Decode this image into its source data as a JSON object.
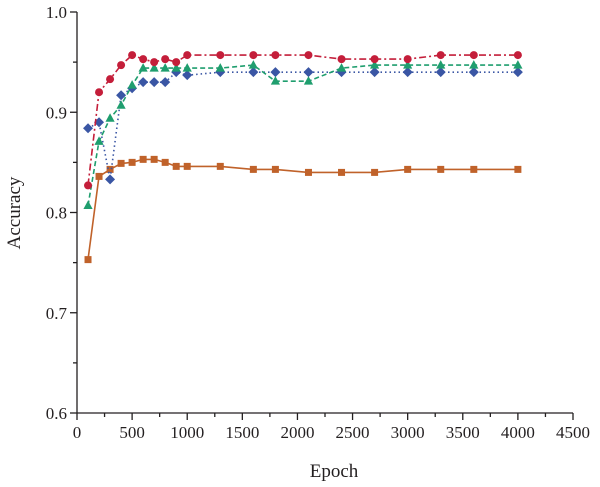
{
  "chart_data": {
    "type": "line",
    "title": "",
    "xlabel": "Epoch",
    "ylabel": "Accuracy",
    "xlim": [
      0,
      4500
    ],
    "ylim": [
      0.6,
      1.0
    ],
    "x_ticks": [
      0,
      500,
      1000,
      1500,
      2000,
      2500,
      3000,
      3500,
      4000,
      4500
    ],
    "x_tick_labels": [
      "0",
      "500",
      "1000",
      "1500",
      "2000",
      "2500",
      "3000",
      "3500",
      "4000",
      "4500"
    ],
    "y_ticks": [
      0.6,
      0.7,
      0.8,
      0.9,
      1.0
    ],
    "y_tick_labels": [
      "0.6",
      "0.7",
      "0.8",
      "0.9",
      "1.0"
    ],
    "grid": false,
    "legend": "none",
    "series": [
      {
        "key": "orange-squares",
        "color": "#c0622a",
        "marker": "square",
        "line_style": "solid",
        "points": [
          [
            100,
            0.753
          ],
          [
            200,
            0.836
          ],
          [
            300,
            0.843
          ],
          [
            400,
            0.849
          ],
          [
            500,
            0.85
          ],
          [
            600,
            0.853
          ],
          [
            700,
            0.853
          ],
          [
            800,
            0.85
          ],
          [
            900,
            0.846
          ],
          [
            1000,
            0.846
          ],
          [
            1300,
            0.846
          ],
          [
            1600,
            0.843
          ],
          [
            1800,
            0.843
          ],
          [
            2100,
            0.84
          ],
          [
            2400,
            0.84
          ],
          [
            2700,
            0.84
          ],
          [
            3000,
            0.843
          ],
          [
            3300,
            0.843
          ],
          [
            3600,
            0.843
          ],
          [
            4000,
            0.843
          ]
        ]
      },
      {
        "key": "blue-diamonds",
        "color": "#3a56a4",
        "marker": "diamond",
        "line_style": "dotted",
        "points": [
          [
            100,
            0.884
          ],
          [
            200,
            0.89
          ],
          [
            300,
            0.833
          ],
          [
            400,
            0.917
          ],
          [
            500,
            0.924
          ],
          [
            600,
            0.93
          ],
          [
            700,
            0.93
          ],
          [
            800,
            0.93
          ],
          [
            900,
            0.94
          ],
          [
            1000,
            0.937
          ],
          [
            1300,
            0.94
          ],
          [
            1600,
            0.94
          ],
          [
            1800,
            0.94
          ],
          [
            2100,
            0.94
          ],
          [
            2400,
            0.94
          ],
          [
            2700,
            0.94
          ],
          [
            3000,
            0.94
          ],
          [
            3300,
            0.94
          ],
          [
            3600,
            0.94
          ],
          [
            4000,
            0.94
          ]
        ]
      },
      {
        "key": "green-triangles",
        "color": "#1f9e6e",
        "marker": "triangle",
        "line_style": "dashed",
        "points": [
          [
            100,
            0.807
          ],
          [
            200,
            0.871
          ],
          [
            300,
            0.894
          ],
          [
            400,
            0.907
          ],
          [
            500,
            0.927
          ],
          [
            600,
            0.944
          ],
          [
            700,
            0.944
          ],
          [
            800,
            0.944
          ],
          [
            900,
            0.944
          ],
          [
            1000,
            0.944
          ],
          [
            1300,
            0.944
          ],
          [
            1600,
            0.947
          ],
          [
            1800,
            0.931
          ],
          [
            2100,
            0.931
          ],
          [
            2400,
            0.944
          ],
          [
            2700,
            0.947
          ],
          [
            3000,
            0.947
          ],
          [
            3300,
            0.947
          ],
          [
            3600,
            0.947
          ],
          [
            4000,
            0.947
          ]
        ]
      },
      {
        "key": "red-circles",
        "color": "#c41e3a",
        "marker": "circle",
        "line_style": "dashdot",
        "points": [
          [
            100,
            0.827
          ],
          [
            200,
            0.92
          ],
          [
            300,
            0.933
          ],
          [
            400,
            0.947
          ],
          [
            500,
            0.957
          ],
          [
            600,
            0.953
          ],
          [
            700,
            0.95
          ],
          [
            800,
            0.953
          ],
          [
            900,
            0.95
          ],
          [
            1000,
            0.957
          ],
          [
            1300,
            0.957
          ],
          [
            1600,
            0.957
          ],
          [
            1800,
            0.957
          ],
          [
            2100,
            0.957
          ],
          [
            2400,
            0.953
          ],
          [
            2700,
            0.953
          ],
          [
            3000,
            0.953
          ],
          [
            3300,
            0.957
          ],
          [
            3600,
            0.957
          ],
          [
            4000,
            0.957
          ]
        ]
      }
    ]
  }
}
